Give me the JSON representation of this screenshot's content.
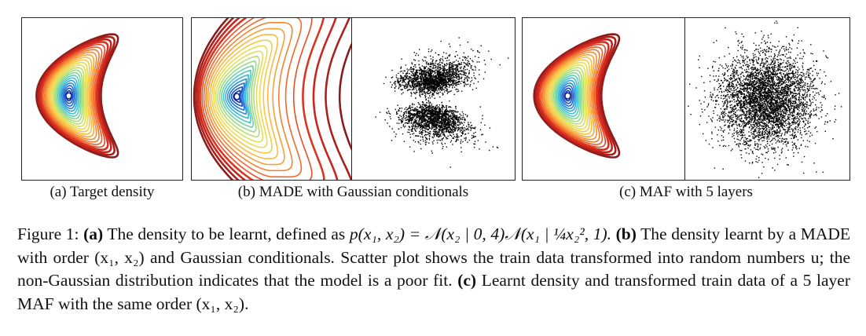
{
  "figure": {
    "subfigures": [
      {
        "id": "a",
        "caption": "(a) Target density",
        "kind": "density"
      },
      {
        "id": "b",
        "caption": "(b) MADE with Gaussian conditionals",
        "kind": "density+scatter"
      },
      {
        "id": "c",
        "caption": "(c) MAF with 5 layers",
        "kind": "density+scatter"
      }
    ],
    "caption": {
      "prefix": "Figure 1:",
      "a_label": "(a)",
      "a_text": "The density to be learnt, defined as",
      "a_formula": "p(x₁, x₂) = 𝒩(x₂ | 0, 4)𝒩(x₁ | ¼x₂², 1).",
      "b_label": "(b)",
      "b_text": "The density learnt by a MADE with order (x₁, x₂) and Gaussian conditionals. Scatter plot shows the train data transformed into random numbers u; the non-Gaussian distribution indicates that the model is a poor fit.",
      "c_label": "(c)",
      "c_text": "Learnt density and transformed train data of a 5 layer MAF with the same order (x₁, x₂)."
    },
    "colors": {
      "contour_outer": "#8b1a1a",
      "contour_inner": "#0a1a8a",
      "scatter_point": "#000000",
      "frame": "#222222"
    }
  }
}
